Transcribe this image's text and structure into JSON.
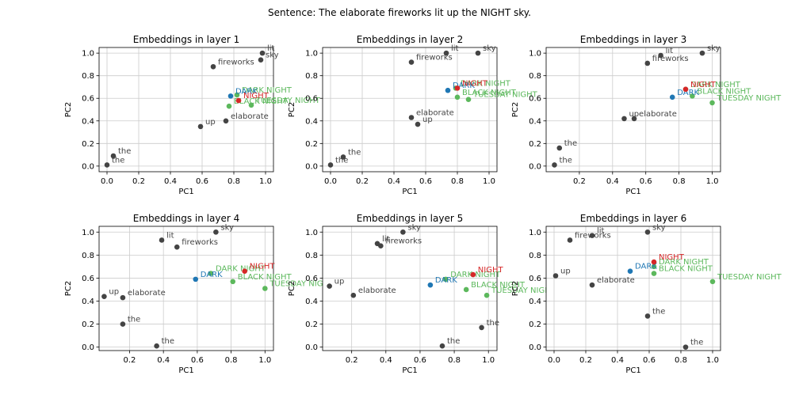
{
  "suptitle": "Sentence: The elaborate fireworks lit up the NIGHT sky.",
  "colors": {
    "context": "#444444",
    "target": "#d62728",
    "reference": "#1f77b4",
    "compound": "#5cb85c",
    "grid": "#cccccc",
    "axis": "#000000"
  },
  "chart_data": [
    {
      "type": "scatter",
      "title": "Embeddings in layer 1",
      "xlabel": "PC1",
      "ylabel": "PC2",
      "xlim": [
        -0.05,
        1.05
      ],
      "ylim": [
        -0.05,
        1.05
      ],
      "xticks": [
        0.0,
        0.2,
        0.4,
        0.6,
        0.8,
        1.0
      ],
      "yticks": [
        0.0,
        0.2,
        0.4,
        0.6,
        0.8,
        1.0
      ],
      "grid": true,
      "points": [
        {
          "label": "the",
          "x": 0.0,
          "y": 0.01,
          "group": "context"
        },
        {
          "label": "the",
          "x": 0.04,
          "y": 0.09,
          "group": "context"
        },
        {
          "label": "fireworks",
          "x": 0.67,
          "y": 0.88,
          "group": "context"
        },
        {
          "label": "lit",
          "x": 0.98,
          "y": 1.0,
          "group": "context"
        },
        {
          "label": "sky",
          "x": 0.97,
          "y": 0.94,
          "group": "context"
        },
        {
          "label": "up",
          "x": 0.59,
          "y": 0.35,
          "group": "context"
        },
        {
          "label": "elaborate",
          "x": 0.75,
          "y": 0.4,
          "group": "context"
        },
        {
          "label": "NIGHT",
          "x": 0.83,
          "y": 0.58,
          "group": "target"
        },
        {
          "label": "DARK",
          "x": 0.78,
          "y": 0.62,
          "group": "reference"
        },
        {
          "label": "DARK NIGHT",
          "x": 0.82,
          "y": 0.63,
          "group": "compound"
        },
        {
          "label": "BLACK NIGHT",
          "x": 0.77,
          "y": 0.53,
          "group": "compound"
        },
        {
          "label": "TUESDAY NIGHT",
          "x": 0.91,
          "y": 0.54,
          "group": "compound"
        }
      ]
    },
    {
      "type": "scatter",
      "title": "Embeddings in layer 2",
      "xlabel": "PC1",
      "ylabel": "PC2",
      "xlim": [
        -0.05,
        1.05
      ],
      "ylim": [
        -0.05,
        1.05
      ],
      "xticks": [
        0.0,
        0.2,
        0.4,
        0.6,
        0.8,
        1.0
      ],
      "yticks": [
        0.0,
        0.2,
        0.4,
        0.6,
        0.8,
        1.0
      ],
      "grid": true,
      "points": [
        {
          "label": "the",
          "x": 0.0,
          "y": 0.01,
          "group": "context"
        },
        {
          "label": "the",
          "x": 0.08,
          "y": 0.08,
          "group": "context"
        },
        {
          "label": "fireworks",
          "x": 0.51,
          "y": 0.92,
          "group": "context"
        },
        {
          "label": "lit",
          "x": 0.73,
          "y": 1.0,
          "group": "context"
        },
        {
          "label": "sky",
          "x": 0.93,
          "y": 1.0,
          "group": "context"
        },
        {
          "label": "elaborate",
          "x": 0.51,
          "y": 0.43,
          "group": "context"
        },
        {
          "label": "up",
          "x": 0.55,
          "y": 0.37,
          "group": "context"
        },
        {
          "label": "NIGHT",
          "x": 0.8,
          "y": 0.69,
          "group": "target"
        },
        {
          "label": "DARK",
          "x": 0.74,
          "y": 0.67,
          "group": "reference"
        },
        {
          "label": "DARK NIGHT",
          "x": 0.79,
          "y": 0.69,
          "group": "compound"
        },
        {
          "label": "BLACK NIGHT",
          "x": 0.8,
          "y": 0.61,
          "group": "compound"
        },
        {
          "label": "TUESDAY NIGHT",
          "x": 0.87,
          "y": 0.59,
          "group": "compound"
        }
      ]
    },
    {
      "type": "scatter",
      "title": "Embeddings in layer 3",
      "xlabel": "PC1",
      "ylabel": "PC2",
      "xlim": [
        0.0,
        1.05
      ],
      "ylim": [
        -0.05,
        1.05
      ],
      "xticks": [
        0.2,
        0.4,
        0.6,
        0.8,
        1.0
      ],
      "yticks": [
        0.0,
        0.2,
        0.4,
        0.6,
        0.8,
        1.0
      ],
      "grid": true,
      "points": [
        {
          "label": "the",
          "x": 0.05,
          "y": 0.01,
          "group": "context"
        },
        {
          "label": "the",
          "x": 0.08,
          "y": 0.16,
          "group": "context"
        },
        {
          "label": "fireworks",
          "x": 0.61,
          "y": 0.91,
          "group": "context"
        },
        {
          "label": "lit",
          "x": 0.69,
          "y": 0.98,
          "group": "context"
        },
        {
          "label": "sky",
          "x": 0.94,
          "y": 1.0,
          "group": "context"
        },
        {
          "label": "up",
          "x": 0.47,
          "y": 0.42,
          "group": "context"
        },
        {
          "label": "elaborate",
          "x": 0.53,
          "y": 0.42,
          "group": "context"
        },
        {
          "label": "NIGHT",
          "x": 0.84,
          "y": 0.68,
          "group": "target"
        },
        {
          "label": "DARK",
          "x": 0.76,
          "y": 0.61,
          "group": "reference"
        },
        {
          "label": "DARK NIGHT",
          "x": 0.84,
          "y": 0.68,
          "group": "compound"
        },
        {
          "label": "BLACK NIGHT",
          "x": 0.88,
          "y": 0.62,
          "group": "compound"
        },
        {
          "label": "TUESDAY NIGHT",
          "x": 1.0,
          "y": 0.56,
          "group": "compound"
        }
      ]
    },
    {
      "type": "scatter",
      "title": "Embeddings in layer 4",
      "xlabel": "PC1",
      "ylabel": "PC2",
      "xlim": [
        0.02,
        1.05
      ],
      "ylim": [
        -0.03,
        1.05
      ],
      "xticks": [
        0.2,
        0.4,
        0.6,
        0.8,
        1.0
      ],
      "yticks": [
        0.0,
        0.2,
        0.4,
        0.6,
        0.8,
        1.0
      ],
      "grid": true,
      "points": [
        {
          "label": "up",
          "x": 0.05,
          "y": 0.44,
          "group": "context"
        },
        {
          "label": "elaborate",
          "x": 0.16,
          "y": 0.43,
          "group": "context"
        },
        {
          "label": "the",
          "x": 0.16,
          "y": 0.2,
          "group": "context"
        },
        {
          "label": "the",
          "x": 0.36,
          "y": 0.01,
          "group": "context"
        },
        {
          "label": "lit",
          "x": 0.39,
          "y": 0.93,
          "group": "context"
        },
        {
          "label": "fireworks",
          "x": 0.48,
          "y": 0.87,
          "group": "context"
        },
        {
          "label": "sky",
          "x": 0.71,
          "y": 1.0,
          "group": "context"
        },
        {
          "label": "NIGHT",
          "x": 0.88,
          "y": 0.66,
          "group": "target"
        },
        {
          "label": "DARK",
          "x": 0.59,
          "y": 0.59,
          "group": "reference"
        },
        {
          "label": "DARK NIGHT",
          "x": 0.68,
          "y": 0.64,
          "group": "compound"
        },
        {
          "label": "BLACK NIGHT",
          "x": 0.81,
          "y": 0.57,
          "group": "compound"
        },
        {
          "label": "TUESDAY NIGHT",
          "x": 1.0,
          "y": 0.51,
          "group": "compound"
        }
      ]
    },
    {
      "type": "scatter",
      "title": "Embeddings in layer 5",
      "xlabel": "PC1",
      "ylabel": "PC2",
      "xlim": [
        0.03,
        1.05
      ],
      "ylim": [
        -0.03,
        1.05
      ],
      "xticks": [
        0.2,
        0.4,
        0.6,
        0.8,
        1.0
      ],
      "yticks": [
        0.0,
        0.2,
        0.4,
        0.6,
        0.8,
        1.0
      ],
      "grid": true,
      "points": [
        {
          "label": "up",
          "x": 0.07,
          "y": 0.53,
          "group": "context"
        },
        {
          "label": "elaborate",
          "x": 0.21,
          "y": 0.45,
          "group": "context"
        },
        {
          "label": "lit",
          "x": 0.35,
          "y": 0.9,
          "group": "context"
        },
        {
          "label": "fireworks",
          "x": 0.37,
          "y": 0.88,
          "group": "context"
        },
        {
          "label": "sky",
          "x": 0.5,
          "y": 1.0,
          "group": "context"
        },
        {
          "label": "the",
          "x": 0.73,
          "y": 0.01,
          "group": "context"
        },
        {
          "label": "the",
          "x": 0.96,
          "y": 0.17,
          "group": "context"
        },
        {
          "label": "NIGHT",
          "x": 0.91,
          "y": 0.63,
          "group": "target"
        },
        {
          "label": "DARK",
          "x": 0.66,
          "y": 0.54,
          "group": "reference"
        },
        {
          "label": "DARK NIGHT",
          "x": 0.75,
          "y": 0.59,
          "group": "compound"
        },
        {
          "label": "BLACK NIGHT",
          "x": 0.87,
          "y": 0.5,
          "group": "compound"
        },
        {
          "label": "TUESDAY NIGHT",
          "x": 0.99,
          "y": 0.45,
          "group": "compound"
        }
      ]
    },
    {
      "type": "scatter",
      "title": "Embeddings in layer 6",
      "xlabel": "PC1",
      "ylabel": "PC2",
      "xlim": [
        -0.05,
        1.05
      ],
      "ylim": [
        -0.03,
        1.05
      ],
      "xticks": [
        0.0,
        0.2,
        0.4,
        0.6,
        0.8,
        1.0
      ],
      "yticks": [
        0.0,
        0.2,
        0.4,
        0.6,
        0.8,
        1.0
      ],
      "grid": true,
      "points": [
        {
          "label": "up",
          "x": 0.01,
          "y": 0.62,
          "group": "context"
        },
        {
          "label": "fireworks",
          "x": 0.1,
          "y": 0.93,
          "group": "context"
        },
        {
          "label": "lit",
          "x": 0.24,
          "y": 0.97,
          "group": "context"
        },
        {
          "label": "elaborate",
          "x": 0.24,
          "y": 0.54,
          "group": "context"
        },
        {
          "label": "sky",
          "x": 0.59,
          "y": 1.0,
          "group": "context"
        },
        {
          "label": "the",
          "x": 0.59,
          "y": 0.27,
          "group": "context"
        },
        {
          "label": "the",
          "x": 0.83,
          "y": 0.0,
          "group": "context"
        },
        {
          "label": "NIGHT",
          "x": 0.63,
          "y": 0.74,
          "group": "target"
        },
        {
          "label": "DARK",
          "x": 0.48,
          "y": 0.66,
          "group": "reference"
        },
        {
          "label": "DARK NIGHT",
          "x": 0.63,
          "y": 0.7,
          "group": "compound"
        },
        {
          "label": "BLACK NIGHT",
          "x": 0.63,
          "y": 0.64,
          "group": "compound"
        },
        {
          "label": "TUESDAY NIGHT",
          "x": 1.0,
          "y": 0.57,
          "group": "compound"
        }
      ]
    }
  ]
}
